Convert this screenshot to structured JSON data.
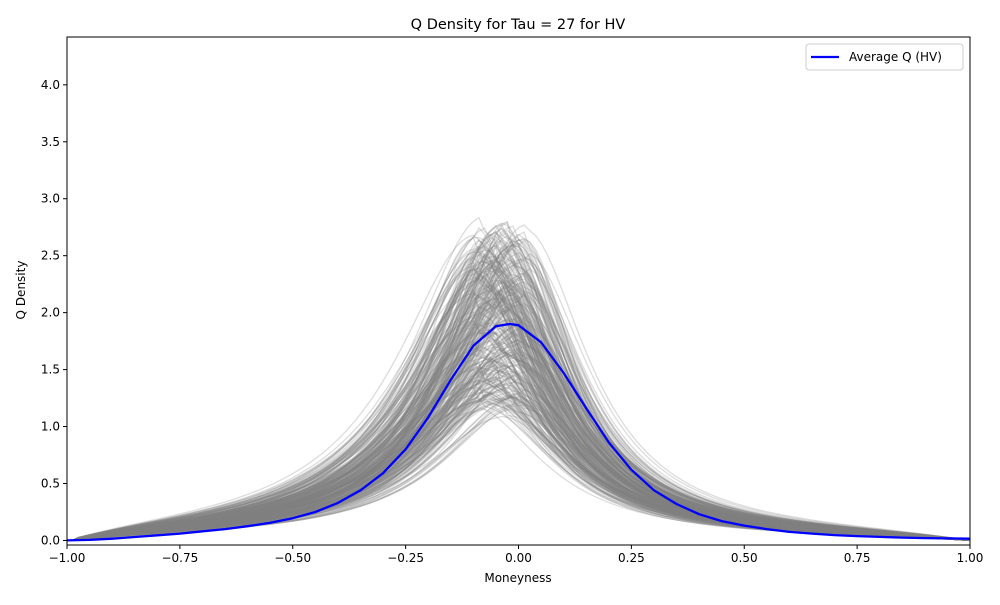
{
  "chart_data": {
    "type": "line",
    "title": "Q Density for Tau = 27 for HV",
    "xlabel": "Moneyness",
    "ylabel": "Q Density",
    "xlim": [
      -1.0,
      1.0
    ],
    "ylim": [
      -0.04,
      4.42
    ],
    "xticks": [
      -1.0,
      -0.75,
      -0.5,
      -0.25,
      0.0,
      0.25,
      0.5,
      0.75,
      1.0
    ],
    "xtick_labels": [
      "−1.00",
      "−0.75",
      "−0.50",
      "−0.25",
      "0.00",
      "0.25",
      "0.50",
      "0.75",
      "1.00"
    ],
    "yticks": [
      0.0,
      0.5,
      1.0,
      1.5,
      2.0,
      2.5,
      3.0,
      3.5,
      4.0
    ],
    "ytick_labels": [
      "0.0",
      "0.5",
      "1.0",
      "1.5",
      "2.0",
      "2.5",
      "3.0",
      "3.5",
      "4.0"
    ],
    "grid": false,
    "legend_position": "top-right",
    "individual_curves": {
      "color": "#808080",
      "opacity": 0.28,
      "count_drawn": 300,
      "peak_range": [
        1.05,
        2.65
      ],
      "peak_location_range": [
        -0.1,
        0.02
      ],
      "description_values": {
        "x": [
          -1.0,
          -0.75,
          -0.5,
          -0.25,
          -0.1,
          0.0,
          0.1,
          0.25,
          0.5,
          0.75,
          1.0
        ],
        "min_y": [
          0.0,
          0.0,
          0.02,
          0.35,
          1.0,
          1.05,
          0.75,
          0.3,
          0.05,
          0.01,
          0.0
        ],
        "max_y": [
          0.02,
          0.3,
          0.65,
          1.3,
          2.55,
          2.65,
          2.1,
          1.0,
          0.3,
          0.12,
          0.08
        ]
      }
    },
    "series": [
      {
        "name": "Average Q (HV)",
        "color": "#0000ff",
        "x": [
          -1.0,
          -0.95,
          -0.9,
          -0.85,
          -0.8,
          -0.75,
          -0.7,
          -0.65,
          -0.6,
          -0.55,
          -0.5,
          -0.45,
          -0.4,
          -0.35,
          -0.3,
          -0.25,
          -0.2,
          -0.15,
          -0.1,
          -0.05,
          -0.02,
          0.0,
          0.05,
          0.1,
          0.15,
          0.2,
          0.25,
          0.3,
          0.35,
          0.4,
          0.45,
          0.5,
          0.55,
          0.6,
          0.65,
          0.7,
          0.75,
          0.8,
          0.85,
          0.9,
          0.95,
          1.0
        ],
        "values": [
          0.0,
          0.005,
          0.015,
          0.03,
          0.045,
          0.06,
          0.08,
          0.1,
          0.125,
          0.155,
          0.195,
          0.25,
          0.33,
          0.44,
          0.59,
          0.8,
          1.08,
          1.41,
          1.71,
          1.88,
          1.9,
          1.89,
          1.74,
          1.47,
          1.16,
          0.86,
          0.62,
          0.44,
          0.32,
          0.23,
          0.17,
          0.13,
          0.1,
          0.075,
          0.06,
          0.047,
          0.038,
          0.031,
          0.025,
          0.021,
          0.018,
          0.015
        ]
      }
    ]
  }
}
